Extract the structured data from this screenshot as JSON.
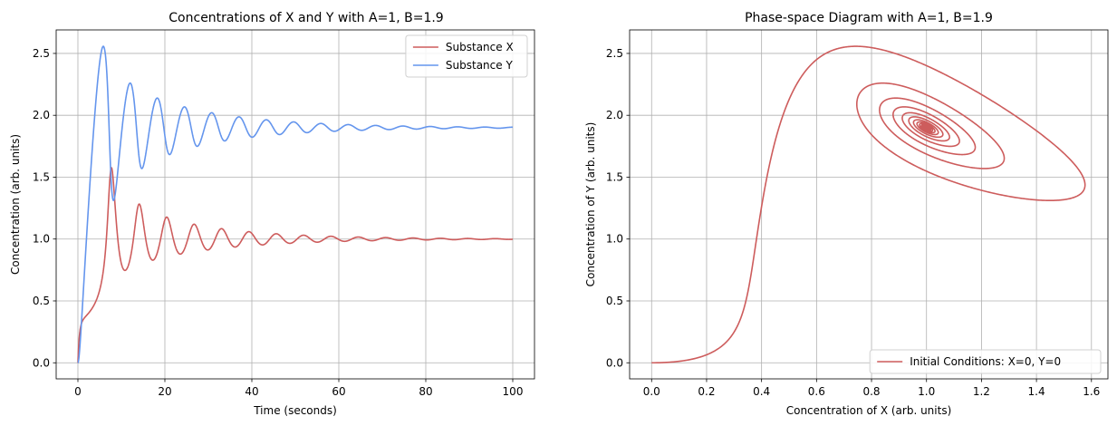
{
  "chart_data": [
    {
      "type": "line",
      "title": "Concentrations of X and Y with A=1, B=1.9",
      "xlabel": "Time (seconds)",
      "ylabel": "Concentration (arb. units)",
      "xlim": [
        -5,
        105
      ],
      "ylim": [
        -0.13,
        2.69
      ],
      "xticks": [
        0,
        20,
        40,
        60,
        80,
        100
      ],
      "yticks": [
        0.0,
        0.5,
        1.0,
        1.5,
        2.0,
        2.5
      ],
      "grid": true,
      "legend_position": "top-right",
      "model": {
        "A": 1,
        "B": 1.9,
        "x0": 0,
        "y0": 0,
        "t_start": 0,
        "t_end": 100
      },
      "series": [
        {
          "name": "Substance X",
          "color": "#cd5c5c",
          "variable": "x"
        },
        {
          "name": "Substance Y",
          "color": "#6495ed",
          "variable": "y"
        }
      ]
    },
    {
      "type": "line",
      "title": "Phase-space Diagram with A=1, B=1.9",
      "xlabel": "Concentration of X (arb. units)",
      "ylabel": "Concentration of Y (arb. units)",
      "xlim": [
        -0.08,
        1.66
      ],
      "ylim": [
        -0.13,
        2.69
      ],
      "xticks": [
        0.0,
        0.2,
        0.4,
        0.6,
        0.8,
        1.0,
        1.2,
        1.4,
        1.6
      ],
      "yticks": [
        0.0,
        0.5,
        1.0,
        1.5,
        2.0,
        2.5
      ],
      "grid": true,
      "legend_position": "bottom-right",
      "model": {
        "A": 1,
        "B": 1.9,
        "x0": 0,
        "y0": 0,
        "t_start": 0,
        "t_end": 100
      },
      "series": [
        {
          "name": "Initial Conditions: X=0, Y=0",
          "color": "#cd5c5c",
          "x_variable": "x",
          "y_variable": "y"
        }
      ]
    }
  ]
}
